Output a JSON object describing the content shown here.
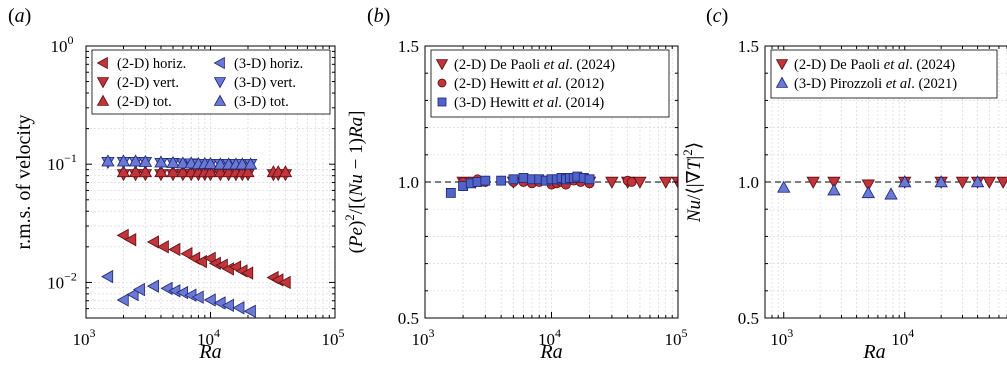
{
  "colors": {
    "red_fill": "#c0343a",
    "red_stroke": "#5a0f12",
    "blue_fill": "#6b79d6",
    "blue_stroke": "#1b2470",
    "square_fill": "#4f63c9",
    "grid": "#d9d9d9"
  },
  "chart_data": [
    {
      "id": "a",
      "type": "scatter",
      "panel_letter": "(a)",
      "xscale": "log",
      "yscale": "log",
      "xlim": [
        1000,
        100000
      ],
      "ylim": [
        0.005,
        1
      ],
      "xlabel": "Ra",
      "ylabel": "r.m.s. of velocity",
      "x_ticks": [
        {
          "value": 1000,
          "base": "10",
          "exp": "3"
        },
        {
          "value": 10000,
          "base": "10",
          "exp": "4"
        },
        {
          "value": 100000,
          "base": "10",
          "exp": "5"
        }
      ],
      "y_ticks": [
        {
          "value": 0.01,
          "base": "10",
          "exp": "−2"
        },
        {
          "value": 0.1,
          "base": "10",
          "exp": "−1"
        },
        {
          "value": 1,
          "base": "10",
          "exp": "0"
        }
      ],
      "grid": true,
      "legend_columns": 2,
      "legend_items": [
        {
          "label": "(2-D) horiz.",
          "marker": "tri-left",
          "color": "red"
        },
        {
          "label": "(2-D) vert.",
          "marker": "tri-down",
          "color": "red"
        },
        {
          "label": "(2-D) tot.",
          "marker": "tri-up",
          "color": "red"
        },
        {
          "label": "(3-D) horiz.",
          "marker": "tri-left",
          "color": "blue"
        },
        {
          "label": "(3-D) vert.",
          "marker": "tri-down",
          "color": "blue"
        },
        {
          "label": "(3-D) tot.",
          "marker": "tri-up",
          "color": "blue"
        }
      ],
      "series": [
        {
          "marker": "tri-left",
          "color": "red",
          "x": [
            2000,
            2300,
            3500,
            4200,
            5200,
            6500,
            7500,
            8500,
            10000,
            11000,
            12500,
            14000,
            16000,
            18000,
            20000,
            32000,
            35000,
            40000
          ],
          "y": [
            0.025,
            0.023,
            0.022,
            0.02,
            0.019,
            0.0175,
            0.016,
            0.015,
            0.016,
            0.0145,
            0.014,
            0.013,
            0.0135,
            0.0125,
            0.012,
            0.011,
            0.0105,
            0.01
          ]
        },
        {
          "marker": "tri-down",
          "color": "red",
          "x": [
            2000,
            2500,
            3000,
            4000,
            5000,
            6000,
            7000,
            8000,
            9000,
            10000,
            12000,
            14000,
            16000,
            18000,
            20000,
            32000,
            35000,
            40000
          ],
          "y": [
            0.082,
            0.082,
            0.082,
            0.082,
            0.082,
            0.082,
            0.082,
            0.082,
            0.082,
            0.082,
            0.082,
            0.082,
            0.082,
            0.082,
            0.082,
            0.082,
            0.082,
            0.082
          ]
        },
        {
          "marker": "tri-up",
          "color": "red",
          "x": [
            2000,
            2500,
            3000,
            4000,
            5000,
            6000,
            7000,
            8000,
            9000,
            10000,
            12000,
            14000,
            16000,
            18000,
            20000,
            32000,
            35000,
            40000
          ],
          "y": [
            0.086,
            0.086,
            0.086,
            0.086,
            0.086,
            0.086,
            0.086,
            0.086,
            0.086,
            0.086,
            0.086,
            0.086,
            0.086,
            0.086,
            0.086,
            0.086,
            0.086,
            0.086
          ]
        },
        {
          "marker": "tri-left",
          "color": "blue",
          "x": [
            1500,
            2000,
            2400,
            2700,
            3500,
            4500,
            5200,
            6000,
            7000,
            8000,
            10000,
            12000,
            14000,
            17000,
            21000
          ],
          "y": [
            0.0112,
            0.0071,
            0.0079,
            0.0087,
            0.0093,
            0.0089,
            0.0085,
            0.0082,
            0.0078,
            0.0075,
            0.0071,
            0.0067,
            0.0064,
            0.0061,
            0.0057
          ]
        },
        {
          "marker": "tri-down",
          "color": "blue",
          "x": [
            1500,
            2000,
            2500,
            3000,
            4000,
            5000,
            6000,
            7000,
            8000,
            9000,
            10000,
            12000,
            14000,
            16000,
            18000,
            21000
          ],
          "y": [
            0.104,
            0.104,
            0.104,
            0.104,
            0.102,
            0.102,
            0.101,
            0.101,
            0.1,
            0.1,
            0.1,
            0.1,
            0.1,
            0.1,
            0.1,
            0.1
          ]
        },
        {
          "marker": "tri-up",
          "color": "blue",
          "x": [
            1500,
            2000,
            2500,
            3000,
            4000,
            5000,
            6000,
            7000,
            8000,
            9000,
            10000,
            12000,
            14000,
            16000,
            18000,
            21000
          ],
          "y": [
            0.106,
            0.106,
            0.106,
            0.105,
            0.104,
            0.103,
            0.102,
            0.102,
            0.101,
            0.101,
            0.101,
            0.1,
            0.1,
            0.1,
            0.1,
            0.1
          ]
        }
      ]
    },
    {
      "id": "b",
      "type": "scatter",
      "panel_letter": "(b)",
      "xscale": "log",
      "yscale": "linear",
      "xlim": [
        1000,
        100000
      ],
      "ylim": [
        0.5,
        1.5
      ],
      "xlabel": "Ra",
      "ylabel": "(Pe)²/[(Nu − 1)Ra]",
      "x_ticks": [
        {
          "value": 1000,
          "base": "10",
          "exp": "3"
        },
        {
          "value": 10000,
          "base": "10",
          "exp": "4"
        },
        {
          "value": 100000,
          "base": "10",
          "exp": "5"
        }
      ],
      "y_ticks": [
        {
          "value": 0.5,
          "label": "0.5"
        },
        {
          "value": 1.0,
          "label": "1.0"
        },
        {
          "value": 1.5,
          "label": "1.5"
        }
      ],
      "grid": true,
      "reference_line": 1.0,
      "legend_items": [
        {
          "marker": "tri-down",
          "color": "red",
          "pre": "(2-D) De Paoli ",
          "it": "et al",
          "post": ". (2024)"
        },
        {
          "marker": "circle",
          "color": "red",
          "pre": "(2-D) Hewitt ",
          "it": "et al",
          "post": ". (2012)"
        },
        {
          "marker": "square",
          "color": "square",
          "pre": "(3-D) Hewitt ",
          "it": "et al",
          "post": ". (2014)"
        }
      ],
      "series": [
        {
          "marker": "tri-down",
          "color": "red",
          "x": [
            2000,
            2500,
            5000,
            10000,
            20000,
            30000,
            40000,
            50000,
            80000,
            100000
          ],
          "y": [
            1.0,
            1.0,
            1.0,
            1.0,
            1.0,
            1.0,
            1.0,
            1.0,
            1.0,
            1.0
          ]
        },
        {
          "marker": "circle",
          "color": "red",
          "x": [
            2000,
            2600,
            3000,
            5000,
            6000,
            7000,
            8000,
            9000,
            10000,
            11000,
            12000,
            13000,
            15000,
            17000,
            20000,
            40000,
            43000
          ],
          "y": [
            1.0,
            1.01,
            1.0,
            1.0,
            1.0,
            0.995,
            1.0,
            1.005,
            0.99,
            0.995,
            1.0,
            0.99,
            1.005,
            1.0,
            0.995,
            1.005,
            1.0
          ]
        },
        {
          "marker": "square",
          "color": "square",
          "x": [
            1600,
            2000,
            2300,
            2600,
            3000,
            4000,
            5000,
            6000,
            7000,
            8000,
            9000,
            10000,
            11000,
            12000,
            13000,
            14000,
            15000,
            16000,
            18000,
            20000
          ],
          "y": [
            0.96,
            0.985,
            0.995,
            1.0,
            1.005,
            1.005,
            1.01,
            1.015,
            1.01,
            1.01,
            1.005,
            1.01,
            1.01,
            1.015,
            1.01,
            1.015,
            1.015,
            1.02,
            1.015,
            1.01
          ]
        }
      ]
    },
    {
      "id": "c",
      "type": "scatter",
      "panel_letter": "(c)",
      "xscale": "log",
      "yscale": "linear",
      "xlim": [
        700,
        70000
      ],
      "ylim": [
        0.5,
        1.5
      ],
      "xlabel": "Ra",
      "ylabel": "Nu/⟨|∇T|²⟩",
      "x_ticks": [
        {
          "value": 1000,
          "base": "10",
          "exp": "3"
        },
        {
          "value": 10000,
          "base": "10",
          "exp": "4"
        }
      ],
      "y_ticks": [
        {
          "value": 0.5,
          "label": "0.5"
        },
        {
          "value": 1.0,
          "label": "1.0"
        },
        {
          "value": 1.5,
          "label": "1.5"
        }
      ],
      "grid": true,
      "reference_line": 1.0,
      "legend_items": [
        {
          "marker": "tri-down",
          "color": "red",
          "pre": "(2-D) De Paoli ",
          "it": "et al",
          "post": ". (2024)"
        },
        {
          "marker": "tri-up",
          "color": "blue",
          "pre": "(3-D) Pirozzoli ",
          "it": "et al",
          "post": ". (2021)"
        }
      ],
      "series": [
        {
          "marker": "tri-down",
          "color": "red",
          "x": [
            1750,
            2600,
            5000,
            10000,
            20000,
            30000,
            40000,
            50000,
            65000
          ],
          "y": [
            1.0,
            1.0,
            0.99,
            1.0,
            1.0,
            1.0,
            1.0,
            1.0,
            1.0
          ]
        },
        {
          "marker": "tri-up",
          "color": "blue",
          "x": [
            1000,
            2600,
            5000,
            7700,
            10000,
            20000,
            40000
          ],
          "y": [
            0.98,
            0.97,
            0.96,
            0.955,
            1.0,
            1.0,
            1.0
          ]
        }
      ]
    }
  ]
}
